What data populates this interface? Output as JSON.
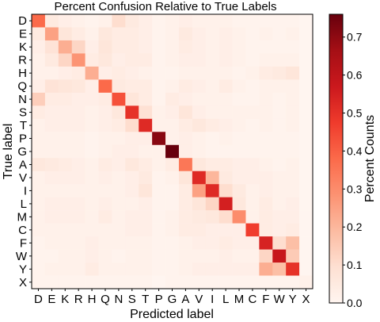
{
  "chart_data": {
    "type": "heatmap",
    "title": "Percent Confusion Relative to True Labels",
    "xlabel": "Predicted label",
    "ylabel": "True label",
    "colorbar_label": "Percent Counts",
    "labels": [
      "D",
      "E",
      "K",
      "R",
      "H",
      "Q",
      "N",
      "S",
      "T",
      "P",
      "G",
      "A",
      "V",
      "I",
      "L",
      "M",
      "C",
      "F",
      "W",
      "Y",
      "X"
    ],
    "colorbar_ticks": [
      0.0,
      0.1,
      0.2,
      0.3,
      0.4,
      0.5,
      0.6,
      0.7
    ],
    "colorbar_tick_labels": [
      "0.0",
      "0.1",
      "0.2",
      "0.3",
      "0.4",
      "0.5",
      "0.6",
      "0.7"
    ],
    "vmin": 0.0,
    "vmax": 0.76,
    "colormap": "Reds",
    "matrix": [
      [
        0.38,
        0.05,
        0.03,
        0.02,
        0.01,
        0.02,
        0.1,
        0.05,
        0.03,
        0.01,
        0.02,
        0.03,
        0.02,
        0.02,
        0.02,
        0.01,
        0.01,
        0.01,
        0.01,
        0.01,
        0.0
      ],
      [
        0.05,
        0.25,
        0.07,
        0.04,
        0.02,
        0.06,
        0.04,
        0.04,
        0.03,
        0.01,
        0.02,
        0.05,
        0.03,
        0.02,
        0.03,
        0.02,
        0.01,
        0.02,
        0.01,
        0.02,
        0.0
      ],
      [
        0.03,
        0.08,
        0.22,
        0.12,
        0.03,
        0.07,
        0.04,
        0.04,
        0.03,
        0.01,
        0.02,
        0.04,
        0.03,
        0.02,
        0.03,
        0.02,
        0.01,
        0.01,
        0.01,
        0.01,
        0.0
      ],
      [
        0.02,
        0.05,
        0.12,
        0.28,
        0.04,
        0.06,
        0.03,
        0.04,
        0.04,
        0.01,
        0.02,
        0.03,
        0.03,
        0.02,
        0.03,
        0.02,
        0.01,
        0.02,
        0.02,
        0.02,
        0.0
      ],
      [
        0.02,
        0.02,
        0.03,
        0.04,
        0.22,
        0.03,
        0.04,
        0.03,
        0.02,
        0.01,
        0.01,
        0.02,
        0.02,
        0.02,
        0.02,
        0.01,
        0.02,
        0.04,
        0.05,
        0.07,
        0.0
      ],
      [
        0.03,
        0.08,
        0.07,
        0.06,
        0.03,
        0.38,
        0.05,
        0.04,
        0.04,
        0.01,
        0.02,
        0.04,
        0.03,
        0.02,
        0.04,
        0.02,
        0.01,
        0.02,
        0.02,
        0.02,
        0.0
      ],
      [
        0.14,
        0.04,
        0.04,
        0.03,
        0.03,
        0.04,
        0.43,
        0.07,
        0.04,
        0.01,
        0.04,
        0.03,
        0.02,
        0.02,
        0.02,
        0.01,
        0.01,
        0.02,
        0.01,
        0.02,
        0.0
      ],
      [
        0.04,
        0.03,
        0.03,
        0.03,
        0.02,
        0.03,
        0.06,
        0.5,
        0.09,
        0.02,
        0.03,
        0.07,
        0.03,
        0.02,
        0.02,
        0.02,
        0.02,
        0.02,
        0.01,
        0.02,
        0.0
      ],
      [
        0.02,
        0.03,
        0.03,
        0.03,
        0.02,
        0.03,
        0.04,
        0.1,
        0.52,
        0.02,
        0.02,
        0.04,
        0.06,
        0.04,
        0.03,
        0.02,
        0.01,
        0.02,
        0.01,
        0.02,
        0.0
      ],
      [
        0.02,
        0.02,
        0.02,
        0.02,
        0.01,
        0.02,
        0.02,
        0.03,
        0.03,
        0.71,
        0.02,
        0.03,
        0.02,
        0.01,
        0.02,
        0.01,
        0.01,
        0.01,
        0.01,
        0.01,
        0.0
      ],
      [
        0.02,
        0.02,
        0.02,
        0.02,
        0.01,
        0.02,
        0.03,
        0.03,
        0.02,
        0.02,
        0.76,
        0.03,
        0.02,
        0.01,
        0.01,
        0.01,
        0.01,
        0.01,
        0.01,
        0.01,
        0.0
      ],
      [
        0.06,
        0.05,
        0.04,
        0.03,
        0.02,
        0.04,
        0.03,
        0.06,
        0.04,
        0.02,
        0.04,
        0.35,
        0.06,
        0.04,
        0.04,
        0.03,
        0.03,
        0.02,
        0.01,
        0.02,
        0.0
      ],
      [
        0.02,
        0.03,
        0.03,
        0.03,
        0.02,
        0.03,
        0.02,
        0.03,
        0.05,
        0.01,
        0.02,
        0.07,
        0.52,
        0.2,
        0.05,
        0.03,
        0.03,
        0.03,
        0.02,
        0.02,
        0.0
      ],
      [
        0.02,
        0.02,
        0.02,
        0.02,
        0.02,
        0.02,
        0.02,
        0.03,
        0.07,
        0.01,
        0.01,
        0.04,
        0.25,
        0.52,
        0.1,
        0.05,
        0.02,
        0.03,
        0.02,
        0.02,
        0.0
      ],
      [
        0.02,
        0.03,
        0.03,
        0.03,
        0.02,
        0.03,
        0.02,
        0.02,
        0.03,
        0.01,
        0.01,
        0.04,
        0.07,
        0.12,
        0.55,
        0.06,
        0.02,
        0.04,
        0.02,
        0.03,
        0.0
      ],
      [
        0.02,
        0.03,
        0.03,
        0.03,
        0.02,
        0.04,
        0.02,
        0.03,
        0.03,
        0.01,
        0.02,
        0.04,
        0.05,
        0.06,
        0.1,
        0.3,
        0.02,
        0.04,
        0.03,
        0.03,
        0.0
      ],
      [
        0.02,
        0.02,
        0.02,
        0.02,
        0.02,
        0.02,
        0.02,
        0.03,
        0.03,
        0.01,
        0.02,
        0.04,
        0.04,
        0.03,
        0.03,
        0.03,
        0.47,
        0.04,
        0.03,
        0.04,
        0.0
      ],
      [
        0.01,
        0.02,
        0.02,
        0.02,
        0.03,
        0.02,
        0.02,
        0.02,
        0.02,
        0.01,
        0.01,
        0.02,
        0.03,
        0.03,
        0.04,
        0.03,
        0.03,
        0.54,
        0.1,
        0.18,
        0.0
      ],
      [
        0.01,
        0.01,
        0.02,
        0.02,
        0.03,
        0.02,
        0.01,
        0.02,
        0.02,
        0.01,
        0.01,
        0.02,
        0.02,
        0.02,
        0.03,
        0.02,
        0.02,
        0.12,
        0.58,
        0.15,
        0.0
      ],
      [
        0.01,
        0.02,
        0.02,
        0.02,
        0.04,
        0.02,
        0.02,
        0.02,
        0.02,
        0.01,
        0.01,
        0.02,
        0.03,
        0.03,
        0.03,
        0.03,
        0.03,
        0.22,
        0.18,
        0.5,
        0.0
      ],
      [
        0.01,
        0.01,
        0.01,
        0.01,
        0.01,
        0.01,
        0.01,
        0.01,
        0.01,
        0.0,
        0.01,
        0.01,
        0.01,
        0.01,
        0.01,
        0.01,
        0.01,
        0.01,
        0.01,
        0.01,
        0.02
      ]
    ]
  }
}
